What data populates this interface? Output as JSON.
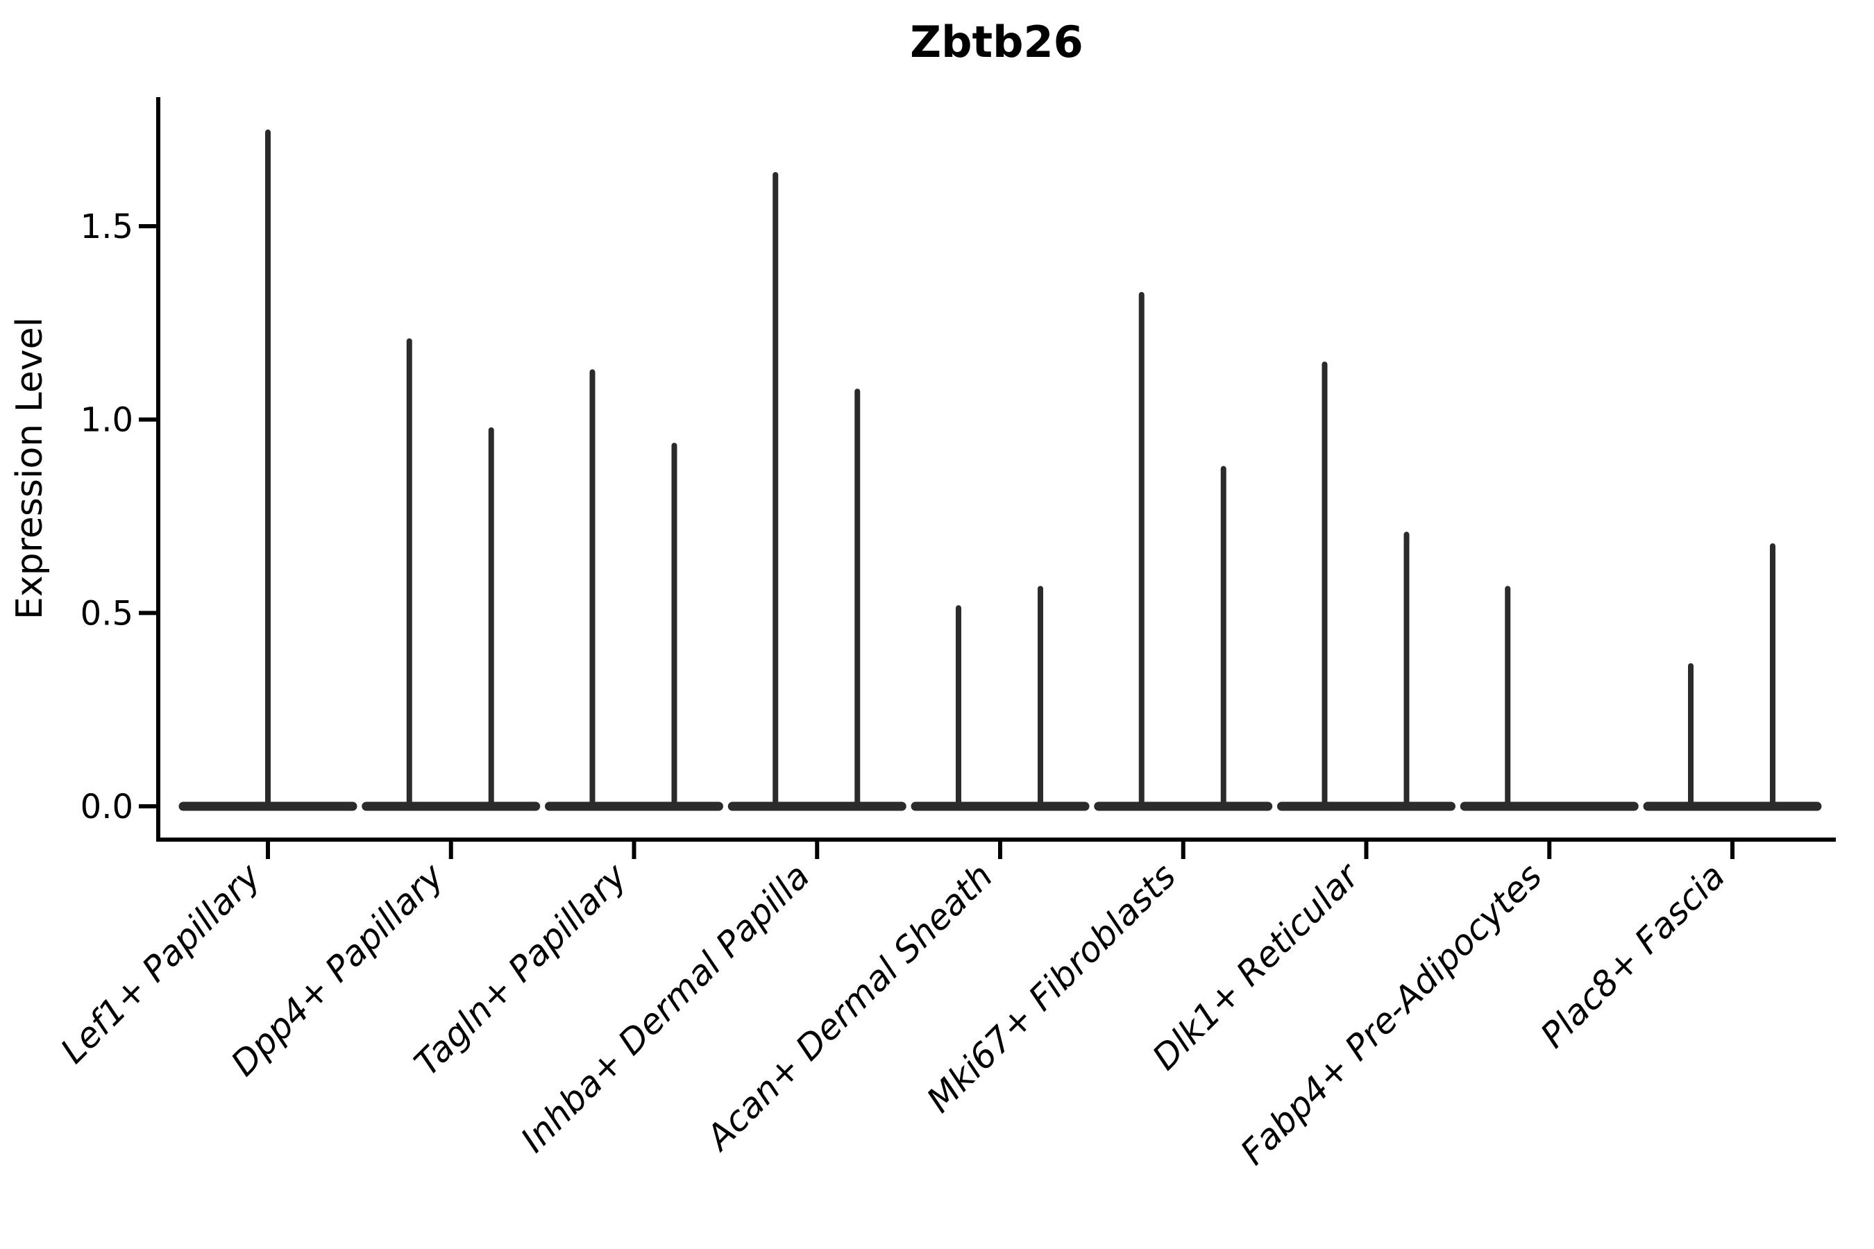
{
  "figure": {
    "title": "Zbtb26",
    "background": "#ffffff"
  },
  "chart_data": {
    "type": "violin",
    "title": "Zbtb26",
    "ylabel": "Expression Level",
    "xlabel": "",
    "grid": false,
    "legend": null,
    "ylim": [
      -0.09,
      1.93
    ],
    "ytick_values": [
      0.0,
      0.5,
      1.0,
      1.5
    ],
    "ytick_labels": [
      "0.0",
      "0.5",
      "1.0",
      "1.5"
    ],
    "baseline_value": 0.0,
    "categories": [
      "Lef1+ Papillary",
      "Dpp4+ Papillary",
      "Tagln+ Papillary",
      "Inhba+ Dermal Papilla",
      "Acan+ Dermal Sheath",
      "Mki67+ Fibroblasts",
      "Dlk1+ Reticular",
      "Fabp4+ Pre-Adipocytes",
      "Plac8+ Fascia"
    ],
    "violins": [
      {
        "category": "Lef1+ Papillary",
        "peaks": [
          {
            "pos": "center",
            "max": 1.75
          }
        ]
      },
      {
        "category": "Dpp4+ Papillary",
        "peaks": [
          {
            "pos": "left",
            "max": 1.21
          },
          {
            "pos": "right",
            "max": 0.98
          }
        ]
      },
      {
        "category": "Tagln+ Papillary",
        "peaks": [
          {
            "pos": "left",
            "max": 1.13
          },
          {
            "pos": "right",
            "max": 0.94
          }
        ]
      },
      {
        "category": "Inhba+ Dermal Papilla",
        "peaks": [
          {
            "pos": "left",
            "max": 1.64
          },
          {
            "pos": "right",
            "max": 1.08
          }
        ]
      },
      {
        "category": "Acan+ Dermal Sheath",
        "peaks": [
          {
            "pos": "left",
            "max": 0.52
          },
          {
            "pos": "right",
            "max": 0.57
          }
        ]
      },
      {
        "category": "Mki67+ Fibroblasts",
        "peaks": [
          {
            "pos": "left",
            "max": 1.33
          },
          {
            "pos": "right",
            "max": 0.88
          }
        ]
      },
      {
        "category": "Dlk1+ Reticular",
        "peaks": [
          {
            "pos": "left",
            "max": 1.15
          },
          {
            "pos": "right",
            "max": 0.71
          }
        ]
      },
      {
        "category": "Fabp4+ Pre-Adipocytes",
        "peaks": [
          {
            "pos": "left",
            "max": 0.57
          }
        ]
      },
      {
        "category": "Plac8+ Fascia",
        "peaks": [
          {
            "pos": "left",
            "max": 0.37
          },
          {
            "pos": "right",
            "max": 0.68
          }
        ]
      }
    ],
    "colors": {
      "line": "#2b2b2b",
      "axis": "#000000",
      "text": "#000000"
    }
  }
}
